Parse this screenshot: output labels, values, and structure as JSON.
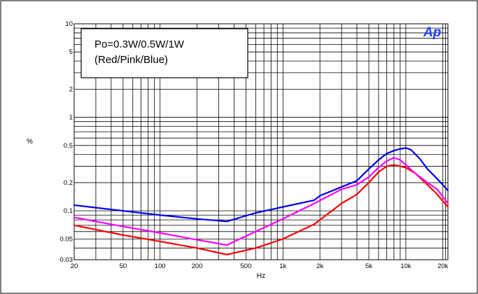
{
  "chart_data": {
    "type": "line",
    "title": "",
    "xlabel": "Hz",
    "ylabel": "%",
    "x_scale": "log",
    "y_scale": "log",
    "xlim": [
      20,
      22000
    ],
    "ylim": [
      0.03,
      10
    ],
    "grid": true,
    "legend_placement": "top-left",
    "legend_lines": [
      "Po=0.3W/0.5W/1W",
      "(Red/Pink/Blue)"
    ],
    "logo": "Ap",
    "x_ticks": [
      {
        "value": 20,
        "label": "20"
      },
      {
        "value": 50,
        "label": "50"
      },
      {
        "value": 100,
        "label": "100"
      },
      {
        "value": 200,
        "label": "200"
      },
      {
        "value": 500,
        "label": "500"
      },
      {
        "value": 1000,
        "label": "1k"
      },
      {
        "value": 2000,
        "label": "2k"
      },
      {
        "value": 5000,
        "label": "5k"
      },
      {
        "value": 10000,
        "label": "10k"
      },
      {
        "value": 20000,
        "label": "20k"
      }
    ],
    "y_ticks": [
      {
        "value": 0.03,
        "label": "0.03"
      },
      {
        "value": 0.05,
        "label": "0.05"
      },
      {
        "value": 0.1,
        "label": "0.1"
      },
      {
        "value": 0.2,
        "label": "0.2"
      },
      {
        "value": 0.5,
        "label": "0.5"
      },
      {
        "value": 1,
        "label": "1"
      },
      {
        "value": 2,
        "label": "2"
      },
      {
        "value": 5,
        "label": "5"
      },
      {
        "value": 10,
        "label": "10"
      }
    ],
    "colors": {
      "red": "#ff0000",
      "pink": "#ff00ff",
      "blue": "#0000ee",
      "logo": "#1e3cff"
    },
    "series": [
      {
        "color": "#ff0000",
        "x": [
          20,
          50,
          100,
          200,
          350,
          600,
          1000,
          1800,
          3000,
          4000,
          5000,
          6000,
          7000,
          8000,
          9000,
          10000,
          12000,
          15000,
          18000,
          22000
        ],
        "y": [
          0.07,
          0.055,
          0.047,
          0.04,
          0.034,
          0.04,
          0.05,
          0.072,
          0.12,
          0.15,
          0.2,
          0.26,
          0.3,
          0.31,
          0.3,
          0.29,
          0.25,
          0.19,
          0.15,
          0.11
        ]
      },
      {
        "color": "#ff00ff",
        "x": [
          20,
          50,
          100,
          200,
          350,
          600,
          1000,
          1800,
          3000,
          4000,
          5000,
          6000,
          7000,
          8000,
          9000,
          10000,
          12000,
          15000,
          18000,
          22000
        ],
        "y": [
          0.085,
          0.068,
          0.058,
          0.049,
          0.043,
          0.06,
          0.082,
          0.12,
          0.17,
          0.19,
          0.23,
          0.29,
          0.34,
          0.37,
          0.35,
          0.31,
          0.25,
          0.2,
          0.17,
          0.12
        ]
      },
      {
        "color": "#0000ee",
        "x": [
          20,
          50,
          100,
          200,
          350,
          600,
          1000,
          1800,
          2000,
          3000,
          4000,
          5000,
          6000,
          7000,
          8000,
          9000,
          10000,
          11000,
          13000,
          15000,
          18000,
          22000
        ],
        "y": [
          0.115,
          0.1,
          0.09,
          0.082,
          0.077,
          0.095,
          0.11,
          0.13,
          0.145,
          0.18,
          0.21,
          0.28,
          0.35,
          0.41,
          0.44,
          0.46,
          0.47,
          0.45,
          0.36,
          0.28,
          0.22,
          0.165
        ]
      }
    ]
  }
}
